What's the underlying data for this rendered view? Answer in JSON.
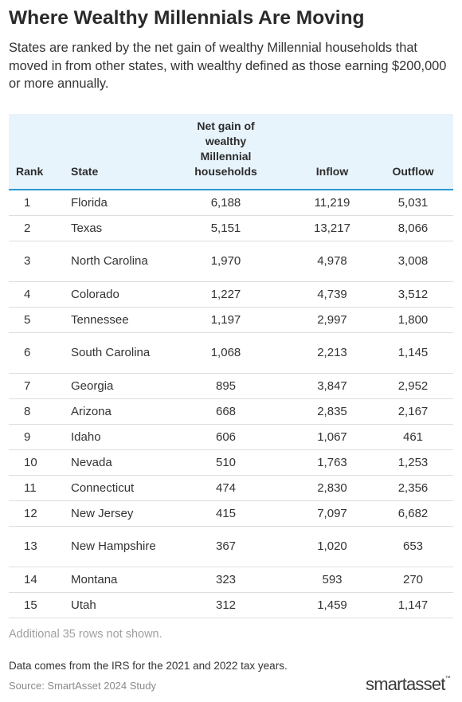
{
  "header": {
    "title": "Where Wealthy Millennials Are Moving",
    "subtitle": "States are ranked by the net gain of wealthy Millennial households that moved in from other states, with wealthy defined as those earning $200,000 or more annually."
  },
  "colors": {
    "header_bg": "#e8f4fc",
    "header_rule": "#2a9ad4",
    "row_divider": "#dedede"
  },
  "chart_data": {
    "type": "table",
    "columns": [
      "Rank",
      "State",
      "Net gain of wealthy Millennial households",
      "Inflow",
      "Outflow"
    ],
    "rows": [
      {
        "rank": "1",
        "state": "Florida",
        "net": "6,188",
        "inflow": "11,219",
        "outflow": "5,031"
      },
      {
        "rank": "2",
        "state": "Texas",
        "net": "5,151",
        "inflow": "13,217",
        "outflow": "8,066"
      },
      {
        "rank": "3",
        "state": "North Carolina",
        "net": "1,970",
        "inflow": "4,978",
        "outflow": "3,008"
      },
      {
        "rank": "4",
        "state": "Colorado",
        "net": "1,227",
        "inflow": "4,739",
        "outflow": "3,512"
      },
      {
        "rank": "5",
        "state": "Tennessee",
        "net": "1,197",
        "inflow": "2,997",
        "outflow": "1,800"
      },
      {
        "rank": "6",
        "state": "South Carolina",
        "net": "1,068",
        "inflow": "2,213",
        "outflow": "1,145"
      },
      {
        "rank": "7",
        "state": "Georgia",
        "net": "895",
        "inflow": "3,847",
        "outflow": "2,952"
      },
      {
        "rank": "8",
        "state": "Arizona",
        "net": "668",
        "inflow": "2,835",
        "outflow": "2,167"
      },
      {
        "rank": "9",
        "state": "Idaho",
        "net": "606",
        "inflow": "1,067",
        "outflow": "461"
      },
      {
        "rank": "10",
        "state": "Nevada",
        "net": "510",
        "inflow": "1,763",
        "outflow": "1,253"
      },
      {
        "rank": "11",
        "state": "Connecticut",
        "net": "474",
        "inflow": "2,830",
        "outflow": "2,356"
      },
      {
        "rank": "12",
        "state": "New Jersey",
        "net": "415",
        "inflow": "7,097",
        "outflow": "6,682"
      },
      {
        "rank": "13",
        "state": "New Hampshire",
        "net": "367",
        "inflow": "1,020",
        "outflow": "653"
      },
      {
        "rank": "14",
        "state": "Montana",
        "net": "323",
        "inflow": "593",
        "outflow": "270"
      },
      {
        "rank": "15",
        "state": "Utah",
        "net": "312",
        "inflow": "1,459",
        "outflow": "1,147"
      }
    ]
  },
  "footer": {
    "more_rows": "Additional 35 rows not shown.",
    "note": "Data comes from the IRS for the 2021 and 2022 tax years.",
    "source": "Source: SmartAsset 2024 Study",
    "logo": "smartasset",
    "logo_mark": "™"
  }
}
